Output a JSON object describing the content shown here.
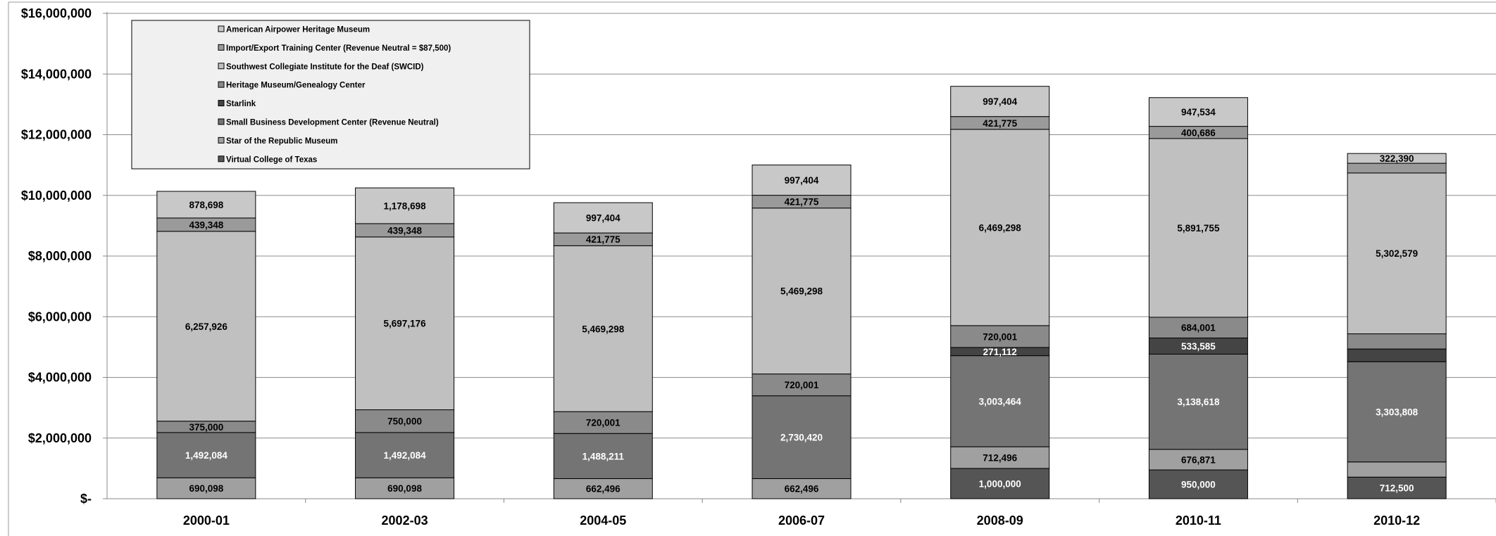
{
  "chart_data": {
    "type": "bar",
    "stacked": true,
    "categories": [
      "2000-01",
      "2002-03",
      "2004-05",
      "2006-07",
      "2008-09",
      "2010-11",
      "2010-12"
    ],
    "ylim": [
      0,
      16000000
    ],
    "yticks": [
      0,
      2000000,
      4000000,
      6000000,
      8000000,
      10000000,
      12000000,
      14000000,
      16000000
    ],
    "ytick_labels": [
      "$-",
      "$2,000,000",
      "$4,000,000",
      "$6,000,000",
      "$8,000,000",
      "$10,000,000",
      "$12,000,000",
      "$14,000,000",
      "$16,000,000"
    ],
    "grid": true,
    "legend_position": "top-left",
    "series": [
      {
        "name": "Virtual College of Texas",
        "color": "#555555",
        "label_color": "#ffffff",
        "values": [
          0,
          0,
          0,
          0,
          1000000,
          950000,
          712500
        ],
        "labels": [
          "",
          "",
          "",
          "",
          "1,000,000",
          "950,000",
          "712,500"
        ]
      },
      {
        "name": "Star of the Republic Museum",
        "color": "#a0a0a0",
        "label_color": "#000000",
        "values": [
          690098,
          690098,
          662496,
          662496,
          712496,
          676871,
          500000
        ],
        "labels": [
          "690,098",
          "690,098",
          "662,496",
          "662,496",
          "712,496",
          "676,871",
          ""
        ]
      },
      {
        "name": "Small Business Development Center (Revenue Neutral)",
        "color": "#747474",
        "label_color": "#ffffff",
        "values": [
          1492084,
          1492084,
          1488211,
          2730420,
          3003464,
          3138618,
          3303808
        ],
        "labels": [
          "1,492,084",
          "1,492,084",
          "1,488,211",
          "2,730,420",
          "3,003,464",
          "3,138,618",
          "3,303,808"
        ]
      },
      {
        "name": "Starlink",
        "color": "#444444",
        "label_color": "#ffffff",
        "values": [
          0,
          0,
          0,
          0,
          271112,
          533585,
          420000
        ],
        "labels": [
          "",
          "",
          "",
          "",
          "271,112",
          "533,585",
          ""
        ]
      },
      {
        "name": "Heritage Museum/Genealogy Center",
        "color": "#8a8a8a",
        "label_color": "#000000",
        "values": [
          375000,
          750000,
          720001,
          720001,
          720001,
          684001,
          500000
        ],
        "labels": [
          "375,000",
          "750,000",
          "720,001",
          "720,001",
          "720,001",
          "684,001",
          ""
        ]
      },
      {
        "name": "Southwest Collegiate Institute for the Deaf (SWCID)",
        "color": "#c0c0c0",
        "label_color": "#000000",
        "values": [
          6257926,
          5697176,
          5469298,
          5469298,
          6469298,
          5891755,
          5302579
        ],
        "labels": [
          "6,257,926",
          "5,697,176",
          "5,469,298",
          "5,469,298",
          "6,469,298",
          "5,891,755",
          "5,302,579"
        ]
      },
      {
        "name": "Import/Export Training Center (Revenue Neutral = $87,500)",
        "color": "#9a9a9a",
        "label_color": "#000000",
        "values": [
          439348,
          439348,
          421775,
          421775,
          421775,
          400686,
          320000
        ],
        "labels": [
          "439,348",
          "439,348",
          "421,775",
          "421,775",
          "421,775",
          "400,686",
          ""
        ]
      },
      {
        "name": "American Airpower Heritage Museum",
        "color": "#c8c8c8",
        "label_color": "#000000",
        "values": [
          878698,
          1178698,
          997404,
          997404,
          997404,
          947534,
          322390
        ],
        "labels": [
          "878,698",
          "1,178,698",
          "997,404",
          "997,404",
          "997,404",
          "947,534",
          "322,390"
        ]
      }
    ],
    "legend_order": [
      "American Airpower Heritage Museum",
      "Import/Export Training Center (Revenue Neutral = $87,500)",
      "Southwest Collegiate Institute for the Deaf (SWCID)",
      "Heritage Museum/Genealogy Center",
      "Starlink",
      "Small Business Development Center (Revenue Neutral)",
      "Star of the Republic Museum",
      "Virtual College of Texas"
    ]
  }
}
